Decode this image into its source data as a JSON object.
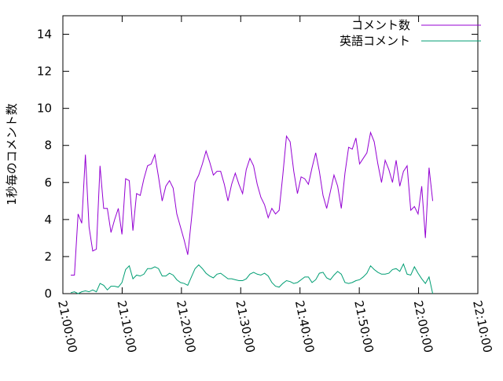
{
  "chart_data": {
    "type": "line",
    "ylabel": "1秒毎のコメント数",
    "xlim": [
      "21:00:00",
      "22:10:00"
    ],
    "xticks": [
      "21:00:00",
      "21:10:00",
      "21:20:00",
      "21:30:00",
      "21:40:00",
      "21:50:00",
      "22:00:00",
      "22:10:00"
    ],
    "ylim": [
      0,
      15
    ],
    "yticks": [
      0,
      2,
      4,
      6,
      8,
      10,
      12,
      14
    ],
    "legend": "upper right",
    "x": [
      "21:01:20",
      "21:01:57",
      "21:02:34",
      "21:03:11",
      "21:03:48",
      "21:04:25",
      "21:05:02",
      "21:05:39",
      "21:06:16",
      "21:06:53",
      "21:07:30",
      "21:08:07",
      "21:08:44",
      "21:09:21",
      "21:09:58",
      "21:10:35",
      "21:11:12",
      "21:11:49",
      "21:12:26",
      "21:13:03",
      "21:13:40",
      "21:14:17",
      "21:14:54",
      "21:15:31",
      "21:16:08",
      "21:16:45",
      "21:17:22",
      "21:17:59",
      "21:18:36",
      "21:19:13",
      "21:19:50",
      "21:20:27",
      "21:21:04",
      "21:21:41",
      "21:22:18",
      "21:22:55",
      "21:23:32",
      "21:24:09",
      "21:24:46",
      "21:25:23",
      "21:26:00",
      "21:26:37",
      "21:27:14",
      "21:27:51",
      "21:28:28",
      "21:29:05",
      "21:29:42",
      "21:30:19",
      "21:30:56",
      "21:31:33",
      "21:32:10",
      "21:32:47",
      "21:33:24",
      "21:34:01",
      "21:34:38",
      "21:35:15",
      "21:35:52",
      "21:36:29",
      "21:37:06",
      "21:37:43",
      "21:38:20",
      "21:38:57",
      "21:39:34",
      "21:40:11",
      "21:40:48",
      "21:41:25",
      "21:42:02",
      "21:42:39",
      "21:43:16",
      "21:43:53",
      "21:44:30",
      "21:45:07",
      "21:45:44",
      "21:46:21",
      "21:46:58",
      "21:47:35",
      "21:48:12",
      "21:48:49",
      "21:49:26",
      "21:50:03",
      "21:50:40",
      "21:51:17",
      "21:51:54",
      "21:52:31",
      "21:53:08",
      "21:53:45",
      "21:54:22",
      "21:54:59",
      "21:55:36",
      "21:56:13",
      "21:56:50",
      "21:57:27",
      "21:58:04",
      "21:58:41",
      "21:59:18",
      "21:59:55",
      "22:00:32",
      "22:01:09",
      "22:01:46",
      "22:02:23"
    ],
    "series": [
      {
        "name": "コメント数",
        "color": "#9400d3",
        "values": [
          1.0,
          1.0,
          4.3,
          3.8,
          7.5,
          3.6,
          2.3,
          2.4,
          6.9,
          4.6,
          4.6,
          3.3,
          4.0,
          4.6,
          3.2,
          6.2,
          6.1,
          3.4,
          5.4,
          5.3,
          6.2,
          6.9,
          7.0,
          7.5,
          6.3,
          5.0,
          5.8,
          6.1,
          5.7,
          4.3,
          3.6,
          2.9,
          2.1,
          4.0,
          6.0,
          6.4,
          7.0,
          7.7,
          7.1,
          6.4,
          6.6,
          6.6,
          5.9,
          5.0,
          5.9,
          6.5,
          5.9,
          5.4,
          6.7,
          7.3,
          6.9,
          5.9,
          5.2,
          4.8,
          4.1,
          4.6,
          4.3,
          4.5,
          6.4,
          8.5,
          8.2,
          6.6,
          5.4,
          6.3,
          6.2,
          5.9,
          6.8,
          7.6,
          6.6,
          5.3,
          4.6,
          5.5,
          6.4,
          5.8,
          4.6,
          6.5,
          7.9,
          7.8,
          8.4,
          7.0,
          7.3,
          7.6,
          8.7,
          8.2,
          7.0,
          6.0,
          7.2,
          6.7,
          6.0,
          7.2,
          5.8,
          6.6,
          6.9,
          4.5,
          4.7,
          4.3,
          5.8,
          3.0,
          6.8,
          5.0
        ]
      },
      {
        "name": "英語コメント",
        "color": "#009e73",
        "values": [
          0.05,
          0.1,
          0.0,
          0.1,
          0.15,
          0.1,
          0.2,
          0.1,
          0.55,
          0.45,
          0.2,
          0.4,
          0.4,
          0.35,
          0.6,
          1.3,
          1.5,
          0.8,
          1.0,
          0.95,
          1.05,
          1.35,
          1.35,
          1.45,
          1.35,
          0.95,
          0.95,
          1.1,
          1.0,
          0.75,
          0.6,
          0.55,
          0.45,
          0.9,
          1.35,
          1.55,
          1.35,
          1.1,
          0.95,
          0.85,
          1.05,
          1.1,
          0.95,
          0.8,
          0.8,
          0.75,
          0.7,
          0.7,
          0.8,
          1.05,
          1.15,
          1.05,
          1.0,
          1.1,
          0.95,
          0.6,
          0.4,
          0.35,
          0.55,
          0.7,
          0.65,
          0.55,
          0.6,
          0.75,
          0.9,
          0.9,
          0.6,
          0.75,
          1.1,
          1.15,
          0.85,
          0.75,
          1.0,
          1.2,
          1.05,
          0.6,
          0.55,
          0.6,
          0.7,
          0.75,
          0.9,
          1.1,
          1.5,
          1.3,
          1.15,
          1.05,
          1.05,
          1.1,
          1.3,
          1.35,
          1.2,
          1.6,
          1.05,
          1.0,
          1.45,
          1.1,
          0.8,
          0.55,
          0.9,
          0.0
        ]
      }
    ]
  }
}
